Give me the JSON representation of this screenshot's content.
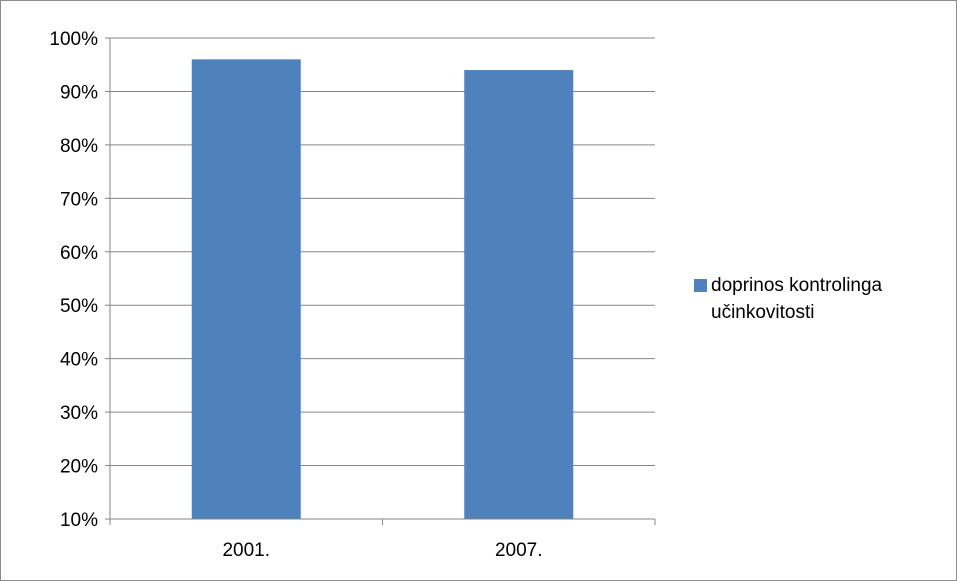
{
  "chart_data": {
    "type": "bar",
    "categories": [
      "2001.",
      "2007."
    ],
    "series": [
      {
        "name": "doprinos kontrolinga učinkovitosti",
        "values": [
          0.96,
          0.94
        ],
        "color": "#4f81bd"
      }
    ],
    "ylim": [
      0.1,
      1.0
    ],
    "yticks": [
      0.1,
      0.2,
      0.3,
      0.4,
      0.5,
      0.6,
      0.7,
      0.8,
      0.9,
      1.0
    ],
    "ytick_labels": [
      "10%",
      "20%",
      "30%",
      "40%",
      "50%",
      "60%",
      "70%",
      "80%",
      "90%",
      "100%"
    ],
    "grid": true,
    "legend_position": "right",
    "title": "",
    "xlabel": "",
    "ylabel": ""
  }
}
